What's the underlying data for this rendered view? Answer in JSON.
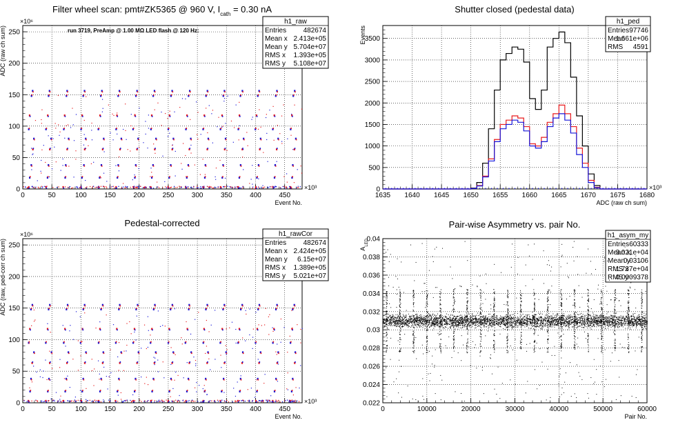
{
  "colors": {
    "black": "#000000",
    "red": "#e8181a",
    "blue": "#1414d8",
    "grid": "#000000"
  },
  "chart_data": [
    {
      "type": "scatter",
      "title": "Filter wheel scan: pmt#ZK5365 @   960 V, I",
      "title_sub": "cath",
      "title_tail": " = 0.30 nA",
      "annotation": "run 3719, PreAmp @ 1.00 MΩ LED flash @  120 Hz:",
      "xlabel": "Event No.",
      "ylabel": "ADC (raw ch sum)",
      "x_exponent": "×10³",
      "y_exponent": "×10⁶",
      "xlim": [
        0,
        480
      ],
      "ylim": [
        0,
        260
      ],
      "xticks": [
        "0",
        "50",
        "100",
        "150",
        "200",
        "250",
        "300",
        "350",
        "400",
        "450"
      ],
      "yticks": [
        "0",
        "50",
        "100",
        "150",
        "200",
        "250"
      ],
      "levels": [
        3,
        18,
        38,
        63,
        80,
        95,
        117,
        148,
        156
      ],
      "series": [
        {
          "color": "red"
        },
        {
          "color": "blue"
        }
      ],
      "stats": {
        "name": "h1_raw",
        "rows": [
          {
            "label": "Entries",
            "value": "482674"
          },
          {
            "label": "Mean x",
            "value": "2.413e+05"
          },
          {
            "label": "Mean y",
            "value": "5.704e+07"
          },
          {
            "label": "RMS x",
            "value": "1.393e+05"
          },
          {
            "label": "RMS y",
            "value": "5.108e+07"
          }
        ]
      }
    },
    {
      "type": "line",
      "title": "Shutter closed (pedestal data)",
      "xlabel": "ADC (raw ch sum)",
      "ylabel": "Events",
      "x_exponent": "×10³",
      "xlim": [
        1635,
        1680
      ],
      "ylim": [
        0,
        3800
      ],
      "xticks": [
        "1635",
        "1640",
        "1645",
        "1650",
        "1655",
        "1660",
        "1665",
        "1670",
        "1675",
        "1680"
      ],
      "yticks": [
        "0",
        "500",
        "1000",
        "1500",
        "2000",
        "2500",
        "3000",
        "3500"
      ],
      "x": [
        1650,
        1651,
        1652,
        1653,
        1654,
        1655,
        1656,
        1657,
        1658,
        1659,
        1660,
        1661,
        1662,
        1663,
        1664,
        1665,
        1666,
        1667,
        1668,
        1669,
        1670,
        1671
      ],
      "series": [
        {
          "color": "black",
          "values": [
            20,
            150,
            600,
            1400,
            2300,
            3000,
            3150,
            3300,
            3250,
            2950,
            2100,
            1850,
            2300,
            3300,
            3500,
            3650,
            3400,
            2600,
            1700,
            1000,
            350,
            80
          ]
        },
        {
          "color": "red",
          "values": [
            10,
            80,
            300,
            700,
            1150,
            1500,
            1600,
            1700,
            1650,
            1450,
            1050,
            1000,
            1200,
            1550,
            1750,
            1950,
            1750,
            1450,
            950,
            600,
            200,
            40
          ]
        },
        {
          "color": "blue",
          "values": [
            10,
            70,
            280,
            650,
            1100,
            1400,
            1500,
            1600,
            1550,
            1350,
            1000,
            950,
            1100,
            1450,
            1650,
            1750,
            1600,
            1300,
            800,
            500,
            150,
            30
          ]
        }
      ],
      "stats": {
        "name": "h1_ped",
        "rows": [
          {
            "label": "Entries",
            "value": "97746"
          },
          {
            "label": "Mean",
            "value": "1.661e+06"
          },
          {
            "label": "RMS",
            "value": "4591"
          }
        ]
      }
    },
    {
      "type": "scatter",
      "title": "Pedestal-corrected",
      "xlabel": "Event No.",
      "ylabel": "ADC (raw, ped-corr ch sum)",
      "x_exponent": "×10³",
      "y_exponent": "×10⁶",
      "xlim": [
        0,
        480
      ],
      "ylim": [
        0,
        260
      ],
      "xticks": [
        "0",
        "50",
        "100",
        "150",
        "200",
        "250",
        "300",
        "350",
        "400",
        "450"
      ],
      "yticks": [
        "0",
        "50",
        "100",
        "150",
        "200",
        "250"
      ],
      "levels": [
        3,
        18,
        38,
        63,
        80,
        95,
        117,
        148,
        155
      ],
      "series": [
        {
          "color": "red"
        },
        {
          "color": "blue"
        }
      ],
      "stats": {
        "name": "h1_rawCor",
        "rows": [
          {
            "label": "Entries",
            "value": "482674"
          },
          {
            "label": "Mean x",
            "value": "2.424e+05"
          },
          {
            "label": "Mean y",
            "value": "6.15e+07"
          },
          {
            "label": "RMS x",
            "value": "1.389e+05"
          },
          {
            "label": "RMS y",
            "value": "5.021e+07"
          }
        ]
      }
    },
    {
      "type": "scatter",
      "title": "Pair-wise Asymmetry vs. pair No.",
      "xlabel": "Pair No.",
      "ylabel": "A",
      "ylabel_sub": "LED",
      "xlim": [
        0,
        60000
      ],
      "ylim": [
        0.022,
        0.04
      ],
      "xticks": [
        "0",
        "10000",
        "20000",
        "30000",
        "40000",
        "50000",
        "60000"
      ],
      "yticks": [
        "0.022",
        "0.024",
        "0.026",
        "0.028",
        "0.03",
        "0.032",
        "0.034",
        "0.036",
        "0.038",
        "0.04"
      ],
      "band_center": 0.031,
      "series": [
        {
          "color": "black"
        }
      ],
      "stats": {
        "name": "h1_asym_my",
        "rows": [
          {
            "label": "Entries",
            "value": "60333"
          },
          {
            "label": "Mean x",
            "value": "3.021e+04"
          },
          {
            "label": "Mean y",
            "value": "0.03106"
          },
          {
            "label": "RMS x",
            "value": "1.737e+04"
          },
          {
            "label": "RMS y",
            "value": "0.0009378"
          }
        ]
      }
    }
  ]
}
